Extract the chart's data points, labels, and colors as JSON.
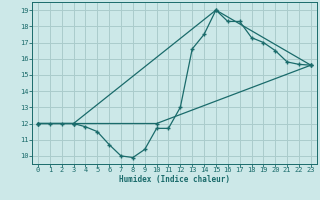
{
  "xlabel": "Humidex (Indice chaleur)",
  "xlim": [
    -0.5,
    23.5
  ],
  "ylim": [
    9.5,
    19.5
  ],
  "yticks": [
    10,
    11,
    12,
    13,
    14,
    15,
    16,
    17,
    18,
    19
  ],
  "xticks": [
    0,
    1,
    2,
    3,
    4,
    5,
    6,
    7,
    8,
    9,
    10,
    11,
    12,
    13,
    14,
    15,
    16,
    17,
    18,
    19,
    20,
    21,
    22,
    23
  ],
  "bg_color": "#cce8e8",
  "grid_color": "#aacccc",
  "line_color": "#1a6b6b",
  "line1_x": [
    0,
    1,
    2,
    3,
    4,
    5,
    6,
    7,
    8,
    9,
    10,
    11,
    12,
    13,
    14,
    15,
    16,
    17,
    18,
    19,
    20,
    21,
    22,
    23
  ],
  "line1_y": [
    12.0,
    12.0,
    12.0,
    12.0,
    11.8,
    11.5,
    10.7,
    10.0,
    9.9,
    10.4,
    11.7,
    11.7,
    13.0,
    16.6,
    17.5,
    19.0,
    18.3,
    18.3,
    17.3,
    17.0,
    16.5,
    15.8,
    15.65,
    15.6
  ],
  "line2_x": [
    0,
    3,
    15,
    23
  ],
  "line2_y": [
    12.0,
    12.0,
    19.0,
    15.6
  ],
  "line3_x": [
    0,
    3,
    10,
    23
  ],
  "line3_y": [
    12.0,
    12.0,
    12.0,
    15.6
  ]
}
